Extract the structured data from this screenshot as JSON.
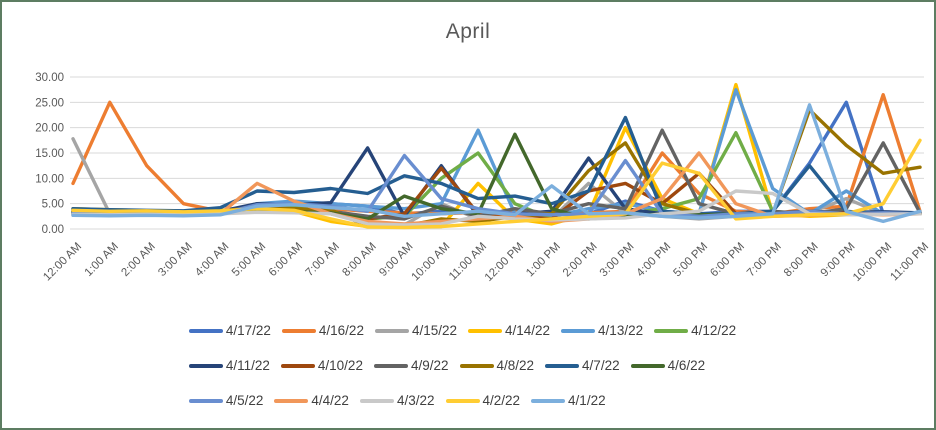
{
  "chart_data": {
    "type": "line",
    "title": "April",
    "grid": true,
    "legend_position": "bottom",
    "ylim": [
      0,
      30
    ],
    "ytick_step": 5,
    "ytick_format": "2-decimals",
    "xlabel": "",
    "ylabel": "",
    "categories": [
      "12:00 AM",
      "1:00 AM",
      "2:00 AM",
      "3:00 AM",
      "4:00 AM",
      "5:00 AM",
      "6:00 AM",
      "7:00 AM",
      "8:00 AM",
      "9:00 AM",
      "10:00 AM",
      "11:00 AM",
      "12:00 PM",
      "1:00 PM",
      "2:00 PM",
      "3:00 PM",
      "4:00 PM",
      "5:00 PM",
      "6:00 PM",
      "7:00 PM",
      "8:00 PM",
      "9:00 PM",
      "10:00 PM",
      "11:00 PM"
    ],
    "series": [
      {
        "name": "4/17/22",
        "color": "#4472C4",
        "values": [
          3.5,
          3.2,
          3.3,
          3.1,
          3.4,
          4.5,
          4.2,
          5.0,
          4.5,
          3.0,
          3.5,
          3.2,
          3.0,
          3.2,
          3.0,
          5.5,
          3.5,
          3.0,
          3.5,
          3.5,
          13.0,
          25.0,
          3.0,
          3.2
        ]
      },
      {
        "name": "4/16/22",
        "color": "#ED7D31",
        "values": [
          9.0,
          25.0,
          12.5,
          5.0,
          3.5,
          3.8,
          4.5,
          4.0,
          3.5,
          3.2,
          3.0,
          3.3,
          3.5,
          3.0,
          3.2,
          3.5,
          15.0,
          7.0,
          3.5,
          3.0,
          4.0,
          4.5,
          26.5,
          3.5
        ]
      },
      {
        "name": "4/15/22",
        "color": "#A5A5A5",
        "values": [
          17.8,
          3.0,
          3.2,
          3.0,
          3.3,
          4.0,
          3.8,
          3.5,
          1.0,
          0.8,
          5.0,
          2.0,
          2.5,
          2.0,
          9.0,
          3.0,
          2.5,
          2.0,
          2.5,
          3.0,
          3.2,
          6.0,
          3.0,
          3.1
        ]
      },
      {
        "name": "4/14/22",
        "color": "#FFC000",
        "values": [
          4.0,
          3.8,
          3.6,
          3.5,
          3.7,
          4.0,
          3.5,
          1.5,
          0.5,
          0.4,
          0.5,
          9.0,
          2.0,
          1.0,
          3.0,
          20.0,
          6.0,
          3.0,
          28.5,
          3.0,
          2.5,
          2.8,
          3.0,
          3.2
        ]
      },
      {
        "name": "4/13/22",
        "color": "#5B9BD5",
        "values": [
          3.0,
          2.8,
          3.0,
          2.9,
          3.1,
          5.0,
          5.5,
          5.0,
          4.5,
          4.0,
          5.0,
          19.5,
          3.0,
          2.5,
          4.0,
          5.0,
          3.5,
          3.0,
          27.5,
          8.0,
          3.0,
          7.5,
          3.0,
          3.0
        ]
      },
      {
        "name": "4/12/22",
        "color": "#70AD47",
        "values": [
          3.0,
          2.9,
          3.0,
          3.0,
          3.2,
          4.0,
          4.5,
          3.0,
          2.0,
          2.5,
          10.0,
          15.0,
          5.0,
          2.0,
          2.5,
          3.0,
          4.0,
          6.0,
          19.0,
          3.5,
          2.8,
          3.0,
          3.2,
          3.0
        ]
      },
      {
        "name": "4/11/22",
        "color": "#264478",
        "values": [
          3.8,
          3.5,
          3.4,
          3.3,
          3.5,
          5.0,
          4.8,
          5.2,
          16.0,
          2.5,
          12.5,
          2.5,
          3.0,
          3.5,
          14.0,
          4.0,
          3.0,
          2.8,
          3.0,
          3.2,
          3.5,
          3.3,
          3.4,
          3.2
        ]
      },
      {
        "name": "4/10/22",
        "color": "#9E480E",
        "values": [
          3.2,
          3.0,
          3.1,
          3.0,
          3.2,
          3.5,
          3.6,
          3.4,
          2.0,
          3.0,
          12.0,
          3.0,
          2.5,
          2.0,
          7.5,
          9.0,
          5.0,
          11.0,
          3.0,
          2.8,
          3.0,
          3.2,
          3.0,
          3.1
        ]
      },
      {
        "name": "4/9/22",
        "color": "#636363",
        "values": [
          3.4,
          3.2,
          3.3,
          3.1,
          3.3,
          3.6,
          3.8,
          3.5,
          2.5,
          2.0,
          4.5,
          2.5,
          4.0,
          3.0,
          5.0,
          4.0,
          19.5,
          5.0,
          3.0,
          3.5,
          3.0,
          4.0,
          17.0,
          3.2
        ]
      },
      {
        "name": "4/8/22",
        "color": "#997300",
        "values": [
          3.6,
          3.4,
          3.5,
          3.3,
          3.6,
          4.2,
          4.0,
          3.8,
          0.5,
          0.6,
          2.0,
          1.5,
          2.5,
          3.0,
          11.5,
          17.0,
          5.0,
          3.0,
          2.5,
          3.0,
          23.5,
          16.5,
          11.0,
          12.2
        ]
      },
      {
        "name": "4/7/22",
        "color": "#255E91",
        "values": [
          4.0,
          3.8,
          3.7,
          3.6,
          4.2,
          7.5,
          7.2,
          8.0,
          7.0,
          10.5,
          9.0,
          6.0,
          6.5,
          5.0,
          7.5,
          22.0,
          3.5,
          3.0,
          3.0,
          3.5,
          12.5,
          3.5,
          3.0,
          3.2
        ]
      },
      {
        "name": "4/6/22",
        "color": "#43682B",
        "values": [
          3.3,
          3.1,
          3.2,
          3.0,
          3.2,
          3.5,
          3.4,
          3.2,
          2.0,
          6.5,
          4.0,
          3.0,
          18.7,
          4.0,
          2.0,
          2.5,
          3.0,
          2.8,
          3.0,
          3.0,
          2.9,
          3.0,
          3.1,
          3.0
        ]
      },
      {
        "name": "4/5/22",
        "color": "#698ED0",
        "values": [
          3.1,
          3.0,
          3.0,
          2.9,
          3.0,
          4.8,
          5.0,
          4.5,
          3.5,
          14.5,
          6.0,
          4.0,
          3.0,
          2.8,
          3.0,
          13.5,
          3.0,
          2.5,
          3.0,
          3.0,
          3.5,
          3.0,
          3.2,
          3.0
        ]
      },
      {
        "name": "4/4/22",
        "color": "#F1975A",
        "values": [
          2.8,
          2.7,
          2.8,
          2.7,
          3.0,
          9.0,
          5.5,
          3.0,
          1.5,
          1.0,
          1.5,
          2.0,
          2.5,
          1.5,
          2.0,
          3.0,
          6.0,
          15.0,
          5.0,
          2.5,
          2.7,
          3.0,
          2.8,
          3.0
        ]
      },
      {
        "name": "4/3/22",
        "color": "#C9C9C9",
        "values": [
          2.9,
          2.8,
          2.9,
          2.8,
          3.0,
          3.3,
          3.2,
          3.0,
          1.0,
          0.8,
          1.0,
          2.5,
          2.0,
          1.8,
          2.0,
          2.2,
          3.0,
          3.5,
          7.5,
          7.0,
          3.0,
          2.8,
          2.9,
          3.0
        ]
      },
      {
        "name": "4/2/22",
        "color": "#FFCD33",
        "values": [
          3.7,
          3.5,
          3.6,
          3.4,
          3.6,
          4.0,
          3.7,
          2.0,
          0.4,
          0.3,
          0.5,
          1.0,
          1.5,
          2.0,
          2.5,
          3.0,
          13.0,
          11.0,
          2.0,
          2.5,
          2.8,
          3.0,
          5.0,
          17.5
        ]
      },
      {
        "name": "4/1/22",
        "color": "#7CAFDD",
        "values": [
          2.7,
          2.6,
          2.7,
          2.6,
          2.8,
          4.5,
          4.8,
          4.2,
          3.8,
          2.5,
          3.0,
          3.5,
          2.8,
          8.5,
          3.0,
          3.2,
          2.5,
          2.2,
          2.5,
          3.0,
          24.5,
          3.5,
          1.5,
          3.5
        ]
      }
    ],
    "colors": {
      "gridline": "#D9D9D9",
      "axis_text": "#595959",
      "title_text": "#595959",
      "legend_text": "#404040",
      "frame_border": "#5d7d62"
    }
  }
}
